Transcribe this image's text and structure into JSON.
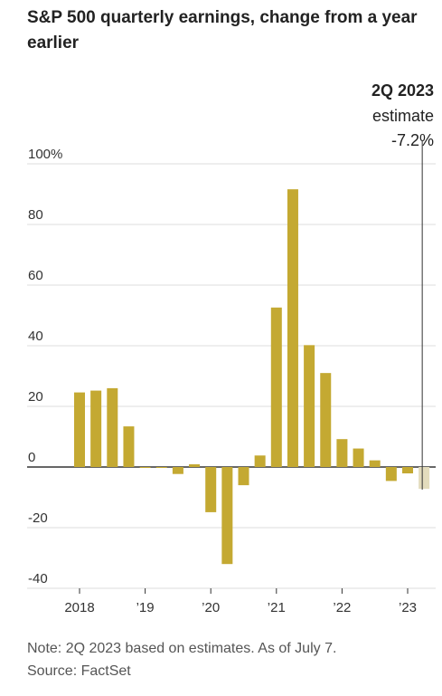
{
  "title": "S&P 500 quarterly earnings, change from a year earlier",
  "annotation": {
    "period": "2Q 2023",
    "label": "estimate",
    "value": "-7.2%"
  },
  "note": "Note: 2Q 2023 based on estimates. As of July 7.",
  "source": "Source: FactSet",
  "colors": {
    "bar": "#c4a932",
    "estimate_bar": "#e3dcbd",
    "grid": "#dddddd",
    "axis": "#333333"
  },
  "chart_data": {
    "type": "bar",
    "categories": [
      "1Q 2018",
      "2Q 2018",
      "3Q 2018",
      "4Q 2018",
      "1Q 2019",
      "2Q 2019",
      "3Q 2019",
      "4Q 2019",
      "1Q 2020",
      "2Q 2020",
      "3Q 2020",
      "4Q 2020",
      "1Q 2021",
      "2Q 2021",
      "3Q 2021",
      "4Q 2021",
      "1Q 2022",
      "2Q 2022",
      "3Q 2022",
      "4Q 2022",
      "1Q 2023",
      "2Q 2023"
    ],
    "values": [
      24.6,
      25.2,
      26.0,
      13.4,
      -0.3,
      -0.2,
      -2.3,
      0.9,
      -14.9,
      -32.0,
      -6.0,
      3.8,
      52.6,
      91.6,
      40.2,
      31.0,
      9.2,
      6.1,
      2.2,
      -4.6,
      -2.1,
      -7.2
    ],
    "estimate_index": 21,
    "ylim": [
      -40,
      100
    ],
    "yticks": [
      100,
      80,
      60,
      40,
      20,
      0,
      -20,
      -40
    ],
    "ytick_labels": [
      "100%",
      "80",
      "60",
      "40",
      "20",
      "0",
      "-20",
      "-40"
    ],
    "xtick_labels": [
      {
        "label": "2018",
        "index": 0
      },
      {
        "label": "’19",
        "index": 4
      },
      {
        "label": "’20",
        "index": 8
      },
      {
        "label": "’21",
        "index": 12
      },
      {
        "label": "’22",
        "index": 16
      },
      {
        "label": "’23",
        "index": 20
      }
    ],
    "xlabel": "",
    "ylabel": "",
    "grid": true
  }
}
